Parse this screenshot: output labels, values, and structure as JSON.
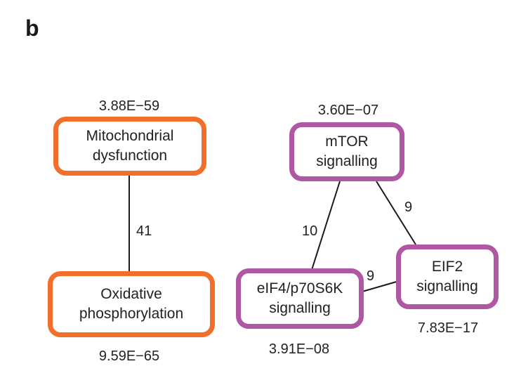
{
  "panel_label": "b",
  "colors": {
    "group_a": "#f26f2b",
    "group_b": "#b057a4",
    "edge": "#1a1a1a"
  },
  "nodes": {
    "mito": {
      "line1": "Mitochondrial",
      "line2": "dysfunction",
      "pvalue": "3.88E−59"
    },
    "oxphos": {
      "line1": "Oxidative",
      "line2": "phosphorylation",
      "pvalue": "9.59E−65"
    },
    "mtor": {
      "line1": "mTOR",
      "line2": "signalling",
      "pvalue": "3.60E−07"
    },
    "eif4": {
      "line1": "eIF4/p70S6K",
      "line2": "signalling",
      "pvalue": "3.91E−08"
    },
    "eif2": {
      "line1": "EIF2",
      "line2": "signalling",
      "pvalue": "7.83E−17"
    }
  },
  "edges": {
    "mito_oxphos": "41",
    "mtor_eif4": "10",
    "mtor_eif2": "9",
    "eif4_eif2": "9"
  }
}
